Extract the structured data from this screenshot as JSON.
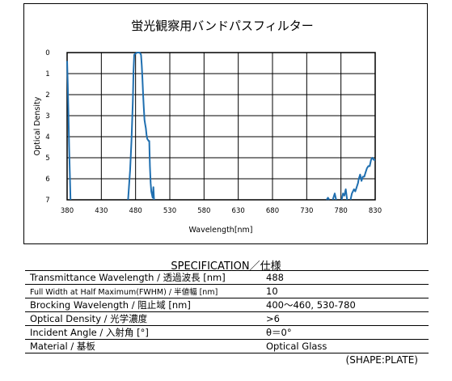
{
  "chart_data": {
    "type": "line",
    "title": "蛍光観察用バンドパスフィルター",
    "xlabel": "Wavelength[nm]",
    "ylabel": "Optical Density",
    "xlim": [
      380,
      830
    ],
    "ylim": [
      0,
      7
    ],
    "y_inverted": true,
    "grid": true,
    "x_ticks": [
      "380",
      "430",
      "480",
      "530",
      "580",
      "630",
      "680",
      "730",
      "780",
      "830"
    ],
    "y_ticks": [
      "0",
      "1",
      "2",
      "3",
      "4",
      "5",
      "6",
      "7"
    ],
    "line_color": "#1f6fb0",
    "series": [
      {
        "segments": [
          [
            [
              380,
              0.4
            ],
            [
              381,
              1.5
            ],
            [
              382,
              3.0
            ],
            [
              383,
              4.5
            ],
            [
              384,
              5.8
            ],
            [
              385,
              7.0
            ]
          ],
          [
            [
              469,
              7.0
            ],
            [
              472,
              5.6
            ],
            [
              474,
              4.2
            ],
            [
              476,
              2.3
            ],
            [
              477,
              0.9
            ],
            [
              478,
              0.1
            ],
            [
              482,
              0
            ],
            [
              486,
              0
            ],
            [
              488,
              0.1
            ],
            [
              489,
              0.6
            ],
            [
              490,
              1.2
            ],
            [
              491,
              2.0
            ],
            [
              492,
              2.6
            ],
            [
              493,
              3.2
            ],
            [
              494,
              3.4
            ],
            [
              495,
              3.6
            ],
            [
              496,
              3.9
            ],
            [
              497,
              4.1
            ],
            [
              499,
              4.2
            ],
            [
              500,
              4.2
            ],
            [
              501,
              5.4
            ],
            [
              502,
              6.2
            ],
            [
              503,
              6.6
            ],
            [
              505,
              6.9
            ],
            [
              506,
              6.4
            ],
            [
              507,
              7.0
            ]
          ],
          [
            [
              759,
              7.0
            ],
            [
              761,
              6.9
            ],
            [
              763,
              7.0
            ]
          ],
          [
            [
              768,
              7.0
            ],
            [
              771,
              6.7
            ],
            [
              773,
              7.0
            ]
          ],
          [
            [
              781,
              7.0
            ],
            [
              783,
              6.7
            ],
            [
              785,
              6.8
            ],
            [
              787,
              6.5
            ],
            [
              789,
              7.0
            ]
          ],
          [
            [
              794,
              7.0
            ],
            [
              796,
              6.7
            ],
            [
              799,
              6.5
            ],
            [
              801,
              6.6
            ],
            [
              803,
              6.4
            ],
            [
              805,
              6.2
            ],
            [
              806,
              6.0
            ],
            [
              808,
              5.8
            ],
            [
              810,
              6.1
            ],
            [
              812,
              5.9
            ],
            [
              814,
              5.9
            ],
            [
              816,
              5.7
            ],
            [
              818,
              5.5
            ],
            [
              820,
              5.4
            ],
            [
              822,
              5.4
            ],
            [
              824,
              5.1
            ],
            [
              826,
              5.0
            ],
            [
              828,
              5.1
            ],
            [
              830,
              5.1
            ]
          ]
        ]
      }
    ]
  },
  "spec": {
    "title": "SPECIFICATION／仕様",
    "rows": [
      {
        "label": "Transmittance  Wavelength / 透過波長  [nm]",
        "value": "488"
      },
      {
        "label": "Full Width at Half Maximum(FWHM)  / 半値幅  [nm]",
        "value": "10"
      },
      {
        "label": "Brocking  Wavelength / 阻止域  [nm]",
        "value": "400～460, 530-780"
      },
      {
        "label": "Optical Density   / 光学濃度",
        "value": ">6"
      },
      {
        "label": "Incident Angle  / 入射角  [°]",
        "value": "θ＝0°"
      },
      {
        "label": "Material  /  基板",
        "value": "Optical Glass"
      }
    ],
    "note": "(SHAPE:PLATE)"
  }
}
